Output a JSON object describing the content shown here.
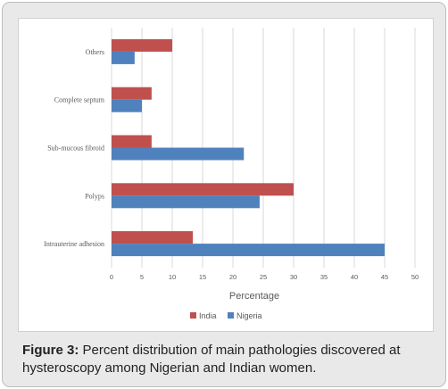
{
  "chart_data": {
    "type": "bar",
    "orientation": "horizontal",
    "categories": [
      "Intrauterine adhesion",
      "Polyps",
      "Sub-mucous fibroid",
      "Complete septum",
      "Others"
    ],
    "series": [
      {
        "name": "India",
        "color": "#c0504d",
        "values": [
          13.4,
          30,
          6.6,
          6.6,
          10
        ]
      },
      {
        "name": "Nigeria",
        "color": "#4f81bd",
        "values": [
          45,
          24.4,
          21.8,
          5,
          3.8
        ]
      }
    ],
    "xlabel": "Percentage",
    "ylabel": "",
    "xlim": [
      0,
      50
    ],
    "xticks": [
      0,
      5,
      10,
      15,
      20,
      25,
      30,
      35,
      40,
      45,
      50
    ],
    "grid": true,
    "legend_position": "bottom"
  },
  "caption": {
    "label": "Figure 3:",
    "text": " Percent distribution of main pathologies discovered at hysteroscopy among Nigerian and Indian women."
  }
}
